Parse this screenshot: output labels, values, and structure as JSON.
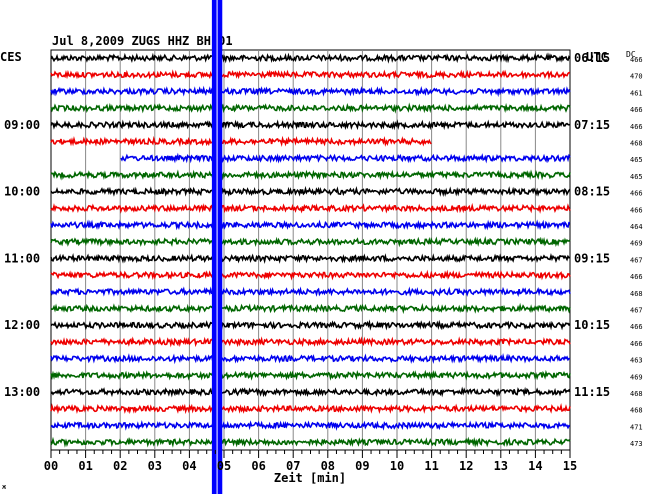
{
  "chart_data": {
    "type": "line",
    "title": "Jul 8,2009   ZUGS HHZ BH 01",
    "left_label": "CES",
    "right_label": "UTC",
    "dc_label": "DC",
    "xlabel": "Zeit [min]",
    "x_ticks": [
      "00",
      "01",
      "02",
      "03",
      "04",
      "05",
      "06",
      "07",
      "08",
      "09",
      "10",
      "11",
      "12",
      "13",
      "14",
      "15"
    ],
    "xlim": [
      0,
      15
    ],
    "left_time_labels": [
      {
        "row": 4,
        "text": "09:00"
      },
      {
        "row": 8,
        "text": "10:00"
      },
      {
        "row": 12,
        "text": "11:00"
      },
      {
        "row": 16,
        "text": "12:00"
      },
      {
        "row": 20,
        "text": "13:00"
      }
    ],
    "right_time_labels": [
      {
        "row": 0,
        "text": "06:15"
      },
      {
        "row": 4,
        "text": "07:15"
      },
      {
        "row": 8,
        "text": "08:15"
      },
      {
        "row": 12,
        "text": "09:15"
      },
      {
        "row": 16,
        "text": "10:15"
      },
      {
        "row": 20,
        "text": "11:15"
      }
    ],
    "dc_values": [
      "466",
      "470",
      "461",
      "466",
      "466",
      "468",
      "465",
      "465",
      "466",
      "466",
      "464",
      "469",
      "467",
      "466",
      "468",
      "467",
      "466",
      "466",
      "463",
      "469",
      "468",
      "468",
      "471",
      "473"
    ],
    "trace_colors": [
      "#000000",
      "#ee0000",
      "#0000ee",
      "#006600"
    ],
    "event": {
      "color": "#0000ff",
      "t_start_min": 4.65,
      "t_end_min": 4.95
    },
    "gaps": [
      {
        "row": 5,
        "from_min": 11.0,
        "to_min": 15.0
      },
      {
        "row": 6,
        "from_min": 0.0,
        "to_min": 2.0
      }
    ],
    "footer_mark": "ж"
  }
}
